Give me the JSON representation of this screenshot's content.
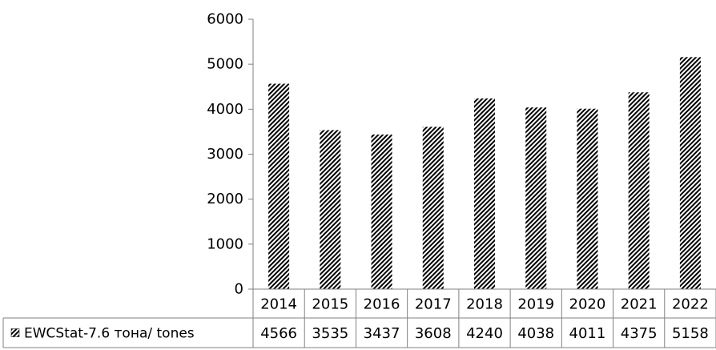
{
  "chart_data": {
    "type": "bar",
    "categories": [
      "2014",
      "2015",
      "2016",
      "2017",
      "2018",
      "2019",
      "2020",
      "2021",
      "2022"
    ],
    "series": [
      {
        "name": "EWCStat-7.6 тона/ tones",
        "values": [
          4566,
          3535,
          3437,
          3608,
          4240,
          4038,
          4011,
          4375,
          5158
        ]
      }
    ],
    "ylim": [
      0,
      6000
    ],
    "y_ticks": [
      "0",
      "1000",
      "2000",
      "3000",
      "4000",
      "5000",
      "6000"
    ],
    "data_table": true,
    "grid": false,
    "legend": "data-table-left",
    "bar_pattern": "diagonal-hatch",
    "colors": {
      "bar_stripe": "#000000",
      "bar_background": "#ffffff",
      "axis": "#7f7f7f",
      "table_border": "#808080"
    }
  }
}
